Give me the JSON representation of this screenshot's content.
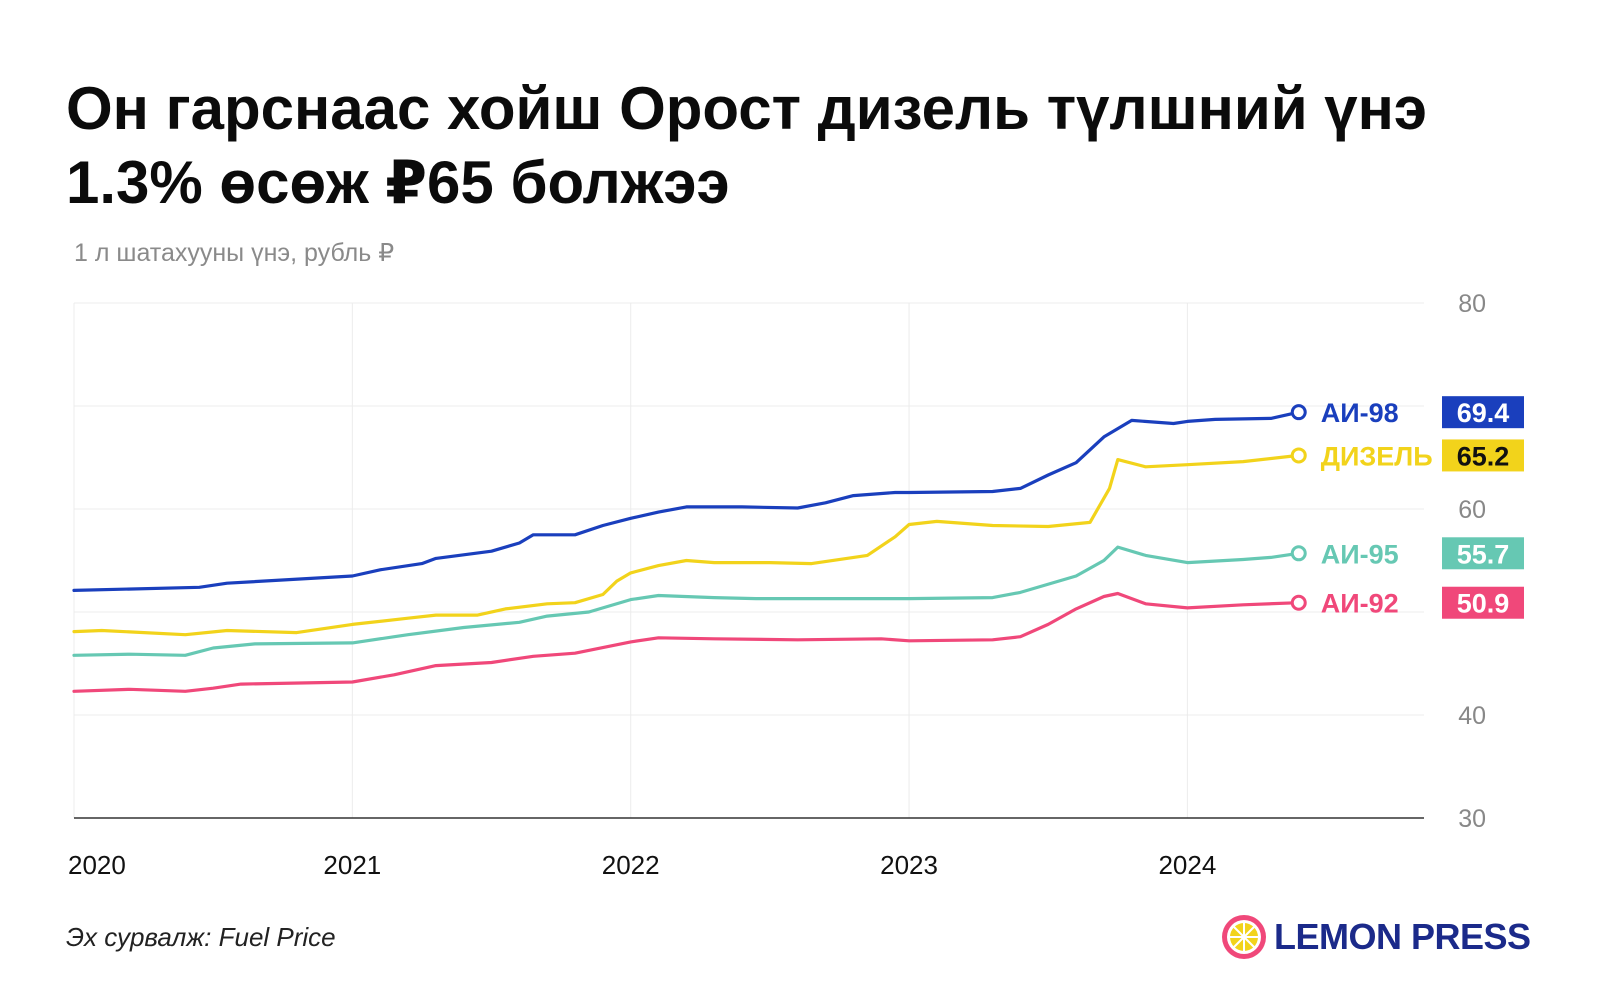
{
  "header": {
    "title": "Он гарснаас хойш Орост дизель түлшний үнэ 1.3% өсөж ₽65 болжээ",
    "subtitle": "1 л шатахууны үнэ, рубль ₽"
  },
  "footer": {
    "source": "Эх сурвалж: Fuel Price",
    "brand": "LEMON PRESS"
  },
  "chart_data": {
    "type": "line",
    "title": "Он гарснаас хойш Орост дизель түлшний үнэ 1.3% өсөж ₽65 болжээ",
    "subtitle": "1 л шатахууны үнэ, рубль ₽",
    "xlim": [
      2020,
      2024.85
    ],
    "ylim": [
      30,
      80
    ],
    "y_ticks": [
      30,
      40,
      60,
      80
    ],
    "x_ticks": [
      2020,
      2021,
      2022,
      2023,
      2024
    ],
    "grid": true,
    "legend": "right-end labels",
    "series": [
      {
        "name": "АИ-98",
        "color": "#1a3fbd",
        "last_value": "69.4",
        "points": [
          [
            2020.0,
            52.1
          ],
          [
            2020.45,
            52.4
          ],
          [
            2020.55,
            52.8
          ],
          [
            2021.0,
            53.5
          ],
          [
            2021.1,
            54.1
          ],
          [
            2021.25,
            54.7
          ],
          [
            2021.3,
            55.2
          ],
          [
            2021.5,
            55.9
          ],
          [
            2021.6,
            56.7
          ],
          [
            2021.65,
            57.5
          ],
          [
            2021.8,
            57.5
          ],
          [
            2021.9,
            58.4
          ],
          [
            2022.0,
            59.1
          ],
          [
            2022.1,
            59.7
          ],
          [
            2022.2,
            60.2
          ],
          [
            2022.4,
            60.2
          ],
          [
            2022.6,
            60.1
          ],
          [
            2022.7,
            60.6
          ],
          [
            2022.8,
            61.3
          ],
          [
            2022.95,
            61.6
          ],
          [
            2023.0,
            61.6
          ],
          [
            2023.3,
            61.7
          ],
          [
            2023.4,
            62.0
          ],
          [
            2023.5,
            63.3
          ],
          [
            2023.6,
            64.5
          ],
          [
            2023.7,
            67.0
          ],
          [
            2023.8,
            68.6
          ],
          [
            2023.95,
            68.3
          ],
          [
            2024.0,
            68.5
          ],
          [
            2024.1,
            68.7
          ],
          [
            2024.3,
            68.8
          ],
          [
            2024.4,
            69.4
          ]
        ]
      },
      {
        "name": "ДИЗЕЛЬ",
        "color": "#f2d31b",
        "last_value": "65.2",
        "points": [
          [
            2020.0,
            48.1
          ],
          [
            2020.1,
            48.2
          ],
          [
            2020.4,
            47.8
          ],
          [
            2020.55,
            48.2
          ],
          [
            2020.8,
            48.0
          ],
          [
            2021.0,
            48.8
          ],
          [
            2021.2,
            49.4
          ],
          [
            2021.3,
            49.7
          ],
          [
            2021.45,
            49.7
          ],
          [
            2021.55,
            50.3
          ],
          [
            2021.7,
            50.8
          ],
          [
            2021.8,
            50.9
          ],
          [
            2021.9,
            51.7
          ],
          [
            2021.95,
            53.0
          ],
          [
            2022.0,
            53.8
          ],
          [
            2022.1,
            54.5
          ],
          [
            2022.2,
            55.0
          ],
          [
            2022.3,
            54.8
          ],
          [
            2022.5,
            54.8
          ],
          [
            2022.65,
            54.7
          ],
          [
            2022.85,
            55.5
          ],
          [
            2022.95,
            57.3
          ],
          [
            2023.0,
            58.5
          ],
          [
            2023.1,
            58.8
          ],
          [
            2023.3,
            58.4
          ],
          [
            2023.5,
            58.3
          ],
          [
            2023.65,
            58.7
          ],
          [
            2023.72,
            62.0
          ],
          [
            2023.75,
            64.8
          ],
          [
            2023.85,
            64.1
          ],
          [
            2024.0,
            64.3
          ],
          [
            2024.2,
            64.6
          ],
          [
            2024.4,
            65.2
          ]
        ]
      },
      {
        "name": "АИ-95",
        "color": "#66c8b3",
        "last_value": "55.7",
        "points": [
          [
            2020.0,
            45.8
          ],
          [
            2020.2,
            45.9
          ],
          [
            2020.4,
            45.8
          ],
          [
            2020.5,
            46.5
          ],
          [
            2020.65,
            46.9
          ],
          [
            2021.0,
            47.0
          ],
          [
            2021.2,
            47.8
          ],
          [
            2021.4,
            48.5
          ],
          [
            2021.6,
            49.0
          ],
          [
            2021.7,
            49.6
          ],
          [
            2021.85,
            50.0
          ],
          [
            2022.0,
            51.2
          ],
          [
            2022.1,
            51.6
          ],
          [
            2022.3,
            51.4
          ],
          [
            2022.45,
            51.3
          ],
          [
            2022.8,
            51.3
          ],
          [
            2023.0,
            51.3
          ],
          [
            2023.3,
            51.4
          ],
          [
            2023.4,
            51.9
          ],
          [
            2023.6,
            53.5
          ],
          [
            2023.7,
            55.0
          ],
          [
            2023.75,
            56.3
          ],
          [
            2023.85,
            55.5
          ],
          [
            2024.0,
            54.8
          ],
          [
            2024.2,
            55.1
          ],
          [
            2024.3,
            55.3
          ],
          [
            2024.4,
            55.7
          ]
        ]
      },
      {
        "name": "АИ-92",
        "color": "#f0487a",
        "last_value": "50.9",
        "points": [
          [
            2020.0,
            42.3
          ],
          [
            2020.2,
            42.5
          ],
          [
            2020.4,
            42.3
          ],
          [
            2020.5,
            42.6
          ],
          [
            2020.6,
            43.0
          ],
          [
            2021.0,
            43.2
          ],
          [
            2021.15,
            43.9
          ],
          [
            2021.3,
            44.8
          ],
          [
            2021.5,
            45.1
          ],
          [
            2021.65,
            45.7
          ],
          [
            2021.8,
            46.0
          ],
          [
            2022.0,
            47.1
          ],
          [
            2022.1,
            47.5
          ],
          [
            2022.3,
            47.4
          ],
          [
            2022.6,
            47.3
          ],
          [
            2022.9,
            47.4
          ],
          [
            2023.0,
            47.2
          ],
          [
            2023.3,
            47.3
          ],
          [
            2023.4,
            47.6
          ],
          [
            2023.5,
            48.8
          ],
          [
            2023.6,
            50.3
          ],
          [
            2023.7,
            51.5
          ],
          [
            2023.75,
            51.8
          ],
          [
            2023.85,
            50.8
          ],
          [
            2024.0,
            50.4
          ],
          [
            2024.2,
            50.7
          ],
          [
            2024.4,
            50.9
          ]
        ]
      }
    ]
  }
}
